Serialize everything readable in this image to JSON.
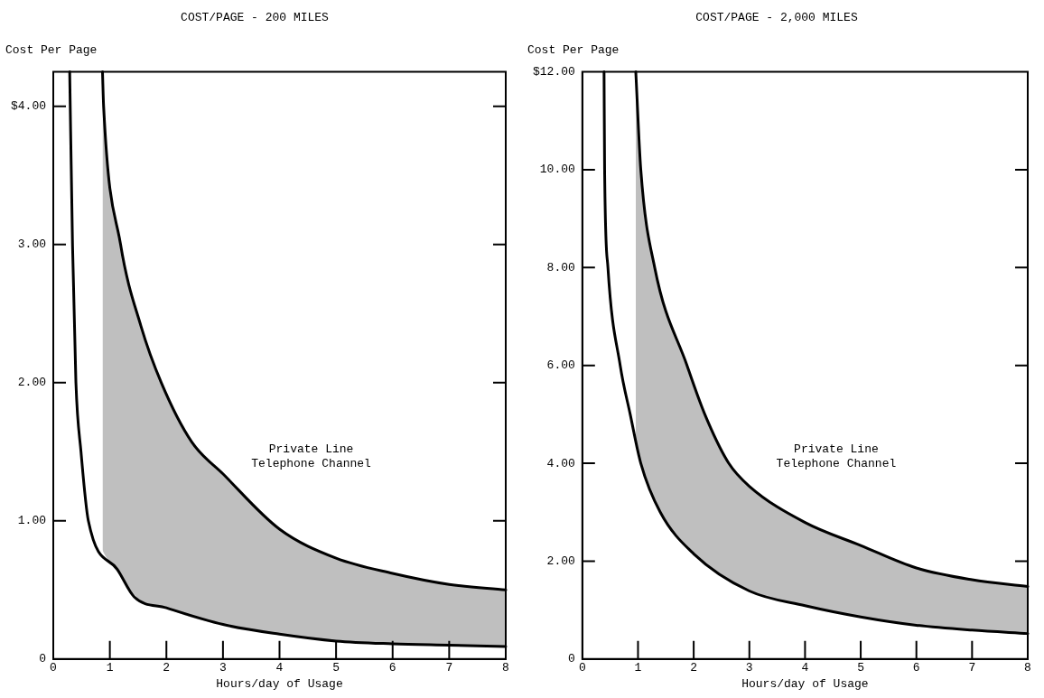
{
  "chart_data": [
    {
      "type": "line",
      "title": "COST/PAGE - 200 MILES",
      "ylabel": "Cost Per Page",
      "xlabel": "Hours/day of Usage",
      "xlim": [
        0,
        8
      ],
      "xticks": [
        0,
        1,
        2,
        3,
        4,
        5,
        6,
        7,
        8
      ],
      "ylim": [
        0,
        4.25
      ],
      "yticks": [
        {
          "value": 0,
          "label": "0"
        },
        {
          "value": 1,
          "label": "1.00"
        },
        {
          "value": 2,
          "label": "2.00"
        },
        {
          "value": 3,
          "label": "3.00"
        },
        {
          "value": 4,
          "label": "$4.00"
        }
      ],
      "grid": false,
      "legend": false,
      "marker": "none",
      "line_style": "solid",
      "series": [
        {
          "color": "#000000",
          "x": [
            0.29,
            0.34,
            0.4,
            0.49,
            0.62,
            1.13,
            1.43,
            2,
            3,
            4,
            5,
            6,
            7,
            8
          ],
          "values": [
            4.25,
            3.0,
            2.0,
            1.5,
            1.0,
            0.65,
            0.45,
            0.37,
            0.25,
            0.18,
            0.13,
            0.11,
            0.1,
            0.09
          ]
        },
        {
          "color": "#000000",
          "x": [
            0.87,
            0.89,
            1.19,
            1.55,
            1.91,
            2.45,
            3,
            4,
            5,
            6,
            7,
            8
          ],
          "values": [
            4.25,
            4.0,
            3.0,
            2.41,
            2.0,
            1.57,
            1.34,
            0.94,
            0.73,
            0.62,
            0.54,
            0.5
          ],
          "lower": [
            0.79,
            0.77,
            0.6,
            0.42,
            0.38,
            0.3,
            0.25,
            0.18,
            0.13,
            0.11,
            0.1,
            0.09
          ],
          "upper": [
            4.25,
            4.0,
            3.0,
            2.41,
            2.0,
            1.57,
            1.34,
            0.94,
            0.73,
            0.62,
            0.54,
            0.5
          ]
        }
      ],
      "annotations": [
        "Private Line Telephone Channel"
      ]
    },
    {
      "type": "line",
      "title": "COST/PAGE - 2,000 MILES",
      "ylabel": "Cost Per Page",
      "xlabel": "Hours/day of Usage",
      "xlim": [
        0,
        8
      ],
      "xticks": [
        0,
        1,
        2,
        3,
        4,
        5,
        6,
        7,
        8
      ],
      "ylim": [
        0,
        12
      ],
      "yticks": [
        {
          "value": 0,
          "label": "0"
        },
        {
          "value": 2,
          "label": "2.00"
        },
        {
          "value": 4,
          "label": "4.00"
        },
        {
          "value": 6,
          "label": "6.00"
        },
        {
          "value": 8,
          "label": "8.00"
        },
        {
          "value": 10,
          "label": "10.00"
        },
        {
          "value": 12,
          "label": "$12.00"
        }
      ],
      "grid": false,
      "legend": false,
      "marker": "none",
      "line_style": "solid",
      "series": [
        {
          "color": "#000000",
          "x": [
            0.39,
            0.4,
            0.46,
            0.68,
            0.86,
            1.05,
            1.4,
            2,
            3,
            4,
            5,
            6,
            7,
            8
          ],
          "values": [
            12,
            10,
            8,
            6,
            5,
            4,
            3,
            2.15,
            1.39,
            1.09,
            0.86,
            0.69,
            0.59,
            0.52
          ]
        },
        {
          "color": "#000000",
          "x": [
            0.96,
            1.05,
            1.3,
            1.88,
            2.2,
            2.63,
            3,
            4,
            5,
            6,
            7,
            8
          ],
          "values": [
            12,
            10,
            8,
            6,
            5,
            4,
            3.53,
            2.79,
            2.32,
            1.86,
            1.62,
            1.48
          ],
          "lower": [
            4.35,
            4.0,
            3.2,
            2.3,
            1.95,
            1.6,
            1.39,
            1.09,
            0.86,
            0.69,
            0.59,
            0.52
          ],
          "upper": [
            12,
            10,
            8,
            6,
            5,
            4,
            3.53,
            2.79,
            2.32,
            1.86,
            1.62,
            1.48
          ]
        }
      ],
      "annotations": [
        "Private Line Telephone Channel"
      ]
    }
  ]
}
